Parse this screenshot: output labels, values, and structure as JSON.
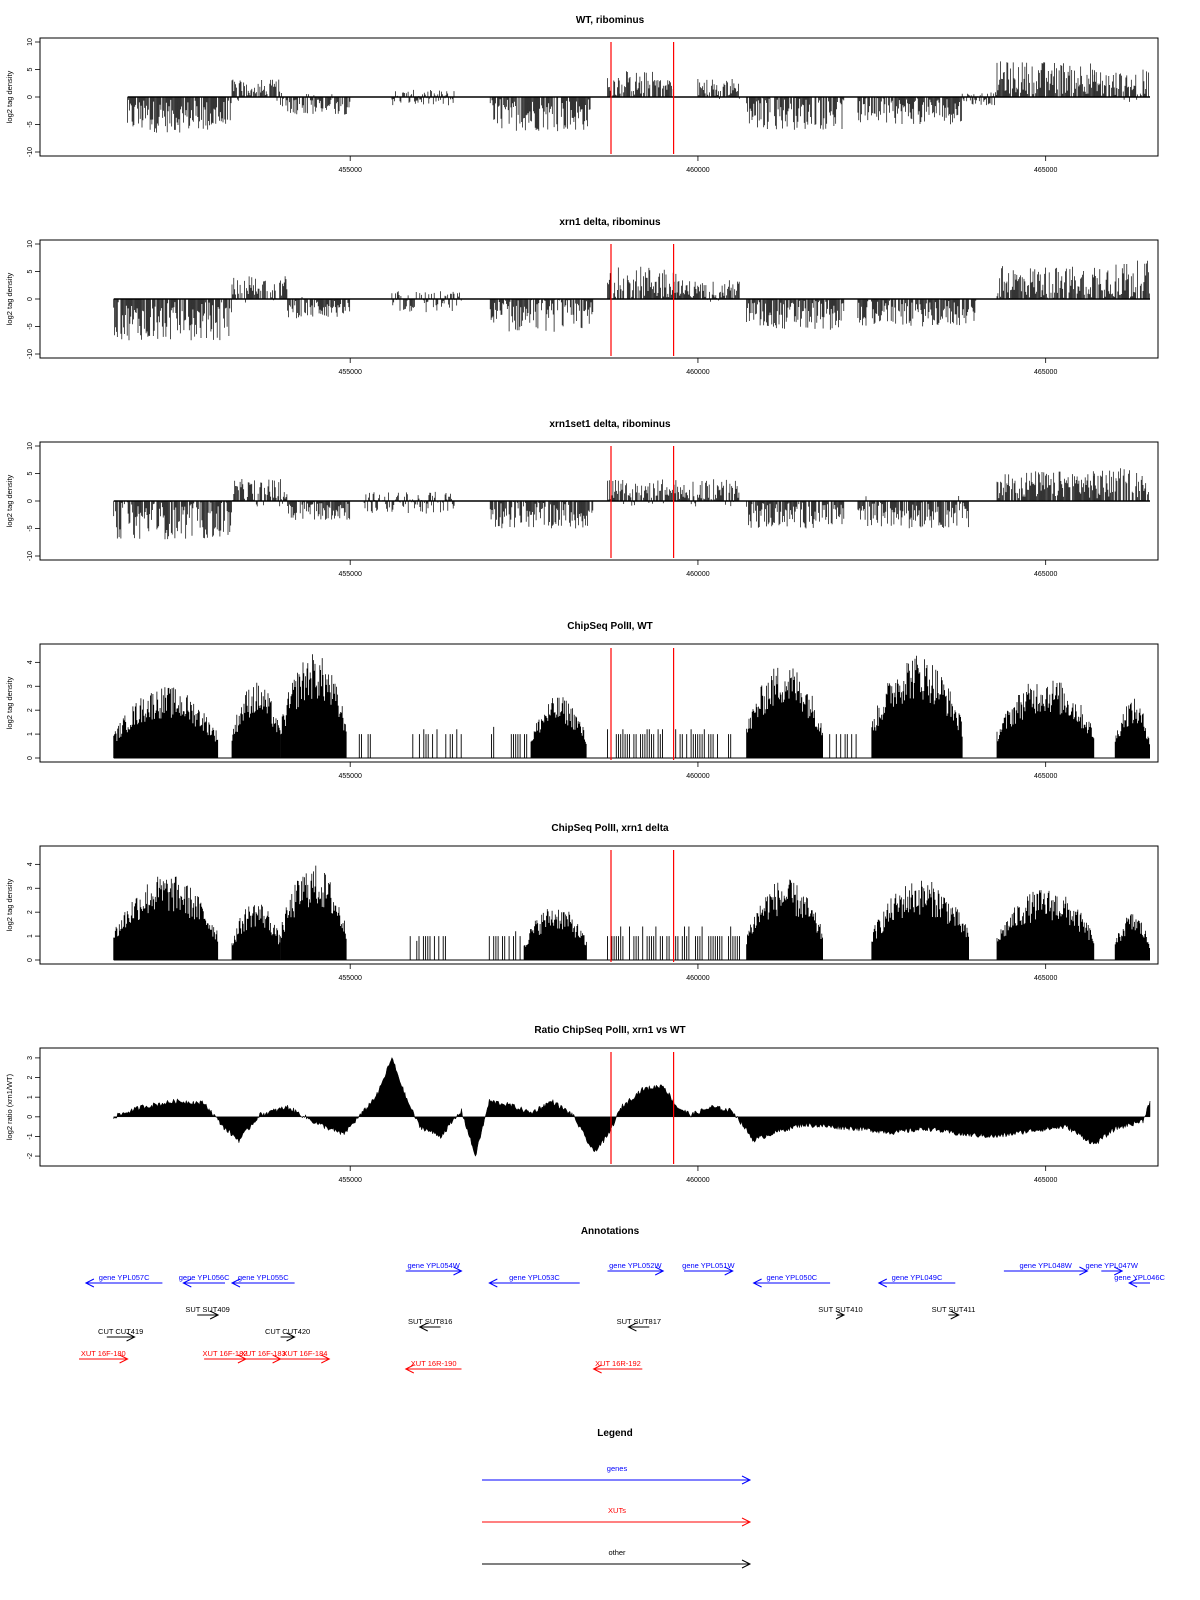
{
  "chart_data": [
    {
      "type": "bar",
      "title": "WT, ribominus",
      "ylabel": "log2 tag density",
      "ylim": [
        -10,
        10
      ],
      "yticks": [
        -10,
        -5,
        0,
        5,
        10
      ],
      "xlim": [
        451000,
        466500
      ],
      "xticks": [
        455000,
        460000,
        465000
      ],
      "markers": [
        458750,
        459650
      ],
      "segments": [
        {
          "start": 451800,
          "end": 453300,
          "mean": -3.5,
          "amp": 3.0
        },
        {
          "start": 453300,
          "end": 454000,
          "mean": 1.2,
          "amp": 2.0
        },
        {
          "start": 454000,
          "end": 455000,
          "mean": -1.2,
          "amp": 2.0
        },
        {
          "start": 455600,
          "end": 456500,
          "mean": -0.2,
          "amp": 1.5
        },
        {
          "start": 457000,
          "end": 458450,
          "mean": -3.2,
          "amp": 3.0
        },
        {
          "start": 458700,
          "end": 459650,
          "mean": 2.2,
          "amp": 2.5
        },
        {
          "start": 460000,
          "end": 460600,
          "mean": 1.5,
          "amp": 2.0
        },
        {
          "start": 460700,
          "end": 462100,
          "mean": -3.0,
          "amp": 3.0
        },
        {
          "start": 462300,
          "end": 463800,
          "mean": -2.5,
          "amp": 2.5
        },
        {
          "start": 463800,
          "end": 464300,
          "mean": -0.3,
          "amp": 1.2
        },
        {
          "start": 464300,
          "end": 465700,
          "mean": 3.5,
          "amp": 3.0
        },
        {
          "start": 465700,
          "end": 466500,
          "mean": 2.0,
          "amp": 3.0
        }
      ]
    },
    {
      "type": "bar",
      "title": "xrn1 delta, ribominus",
      "ylabel": "log2 tag density",
      "ylim": [
        -10,
        10
      ],
      "yticks": [
        -10,
        -5,
        0,
        5,
        10
      ],
      "xlim": [
        451000,
        466500
      ],
      "xticks": [
        455000,
        460000,
        465000
      ],
      "markers": [
        458750,
        459650
      ],
      "segments": [
        {
          "start": 451600,
          "end": 453300,
          "mean": -4.0,
          "amp": 3.5
        },
        {
          "start": 453300,
          "end": 454100,
          "mean": 1.8,
          "amp": 2.5
        },
        {
          "start": 454100,
          "end": 455000,
          "mean": -1.5,
          "amp": 2.0
        },
        {
          "start": 455600,
          "end": 456600,
          "mean": -0.5,
          "amp": 2.0
        },
        {
          "start": 457000,
          "end": 458500,
          "mean": -3.0,
          "amp": 3.0
        },
        {
          "start": 458700,
          "end": 459700,
          "mean": 3.0,
          "amp": 3.0
        },
        {
          "start": 459700,
          "end": 460600,
          "mean": 1.5,
          "amp": 2.0
        },
        {
          "start": 460700,
          "end": 462100,
          "mean": -2.8,
          "amp": 2.8
        },
        {
          "start": 462300,
          "end": 464000,
          "mean": -2.5,
          "amp": 2.5
        },
        {
          "start": 464300,
          "end": 465700,
          "mean": 3.0,
          "amp": 3.0
        },
        {
          "start": 465700,
          "end": 466500,
          "mean": 3.5,
          "amp": 3.5
        }
      ]
    },
    {
      "type": "bar",
      "title": "xrn1set1 delta, ribominus",
      "ylabel": "log2 tag density",
      "ylim": [
        -10,
        10
      ],
      "yticks": [
        -10,
        -5,
        0,
        5,
        10
      ],
      "xlim": [
        451000,
        466500
      ],
      "xticks": [
        455000,
        460000,
        465000
      ],
      "markers": [
        458750,
        459650
      ],
      "segments": [
        {
          "start": 451600,
          "end": 453300,
          "mean": -3.5,
          "amp": 3.5
        },
        {
          "start": 453300,
          "end": 454100,
          "mean": 1.5,
          "amp": 2.5
        },
        {
          "start": 454100,
          "end": 455000,
          "mean": -1.5,
          "amp": 2.0
        },
        {
          "start": 455200,
          "end": 456500,
          "mean": -0.3,
          "amp": 2.0
        },
        {
          "start": 457000,
          "end": 458500,
          "mean": -2.5,
          "amp": 2.5
        },
        {
          "start": 458700,
          "end": 460600,
          "mean": 1.5,
          "amp": 2.5
        },
        {
          "start": 460700,
          "end": 462100,
          "mean": -2.5,
          "amp": 2.5
        },
        {
          "start": 462300,
          "end": 463900,
          "mean": -2.0,
          "amp": 3.0
        },
        {
          "start": 464300,
          "end": 465700,
          "mean": 3.0,
          "amp": 2.5
        },
        {
          "start": 465700,
          "end": 466500,
          "mean": 3.0,
          "amp": 3.0
        }
      ]
    },
    {
      "type": "bar",
      "title": "ChipSeq PolII, WT",
      "ylabel": "log2 tag density",
      "ylim": [
        0,
        4.6
      ],
      "yticks": [
        0,
        1,
        2,
        3,
        4
      ],
      "xlim": [
        451000,
        466500
      ],
      "xticks": [
        455000,
        460000,
        465000
      ],
      "markers": [
        458750,
        459650
      ],
      "segments": [
        {
          "start": 451600,
          "end": 453100,
          "peak": 3.0,
          "sparse": false
        },
        {
          "start": 453300,
          "end": 454000,
          "peak": 3.2,
          "sparse": false
        },
        {
          "start": 454000,
          "end": 454950,
          "peak": 4.4,
          "sparse": false
        },
        {
          "start": 455100,
          "end": 455300,
          "peak": 1.0,
          "sparse": true
        },
        {
          "start": 455900,
          "end": 456600,
          "peak": 1.2,
          "sparse": true
        },
        {
          "start": 457000,
          "end": 457600,
          "peak": 1.3,
          "sparse": true
        },
        {
          "start": 457600,
          "end": 458400,
          "peak": 2.6,
          "sparse": false
        },
        {
          "start": 458700,
          "end": 460500,
          "peak": 1.2,
          "sparse": true
        },
        {
          "start": 460700,
          "end": 461800,
          "peak": 4.0,
          "sparse": false
        },
        {
          "start": 461800,
          "end": 462300,
          "peak": 1.0,
          "sparse": true
        },
        {
          "start": 462500,
          "end": 463800,
          "peak": 4.4,
          "sparse": false
        },
        {
          "start": 464300,
          "end": 465700,
          "peak": 3.4,
          "sparse": false
        },
        {
          "start": 466000,
          "end": 466500,
          "peak": 2.5,
          "sparse": false
        }
      ]
    },
    {
      "type": "bar",
      "title": "ChipSeq PolII, xrn1 delta",
      "ylabel": "log2 tag density",
      "ylim": [
        0,
        4.6
      ],
      "yticks": [
        0,
        1,
        2,
        3,
        4
      ],
      "xlim": [
        451000,
        466500
      ],
      "xticks": [
        455000,
        460000,
        465000
      ],
      "markers": [
        458750,
        459650
      ],
      "segments": [
        {
          "start": 451600,
          "end": 453100,
          "peak": 3.6,
          "sparse": false
        },
        {
          "start": 453300,
          "end": 454000,
          "peak": 2.5,
          "sparse": false
        },
        {
          "start": 454000,
          "end": 454950,
          "peak": 4.0,
          "sparse": false
        },
        {
          "start": 455800,
          "end": 456400,
          "peak": 0.8,
          "sparse": true
        },
        {
          "start": 457000,
          "end": 457500,
          "peak": 1.2,
          "sparse": true
        },
        {
          "start": 457500,
          "end": 458400,
          "peak": 2.3,
          "sparse": false
        },
        {
          "start": 458700,
          "end": 460600,
          "peak": 1.4,
          "sparse": true
        },
        {
          "start": 460700,
          "end": 461800,
          "peak": 3.4,
          "sparse": false
        },
        {
          "start": 462500,
          "end": 463900,
          "peak": 3.4,
          "sparse": false
        },
        {
          "start": 464300,
          "end": 465700,
          "peak": 3.0,
          "sparse": false
        },
        {
          "start": 466000,
          "end": 466500,
          "peak": 2.0,
          "sparse": false
        }
      ]
    },
    {
      "type": "area",
      "title": "Ratio ChipSeq PolII, xrn1 vs WT",
      "ylabel": "log2 ratio (xrn1/WT)",
      "ylim": [
        -2.3,
        3.3
      ],
      "yticks": [
        -2,
        -1,
        0,
        1,
        2,
        3
      ],
      "xlim": [
        451000,
        466500
      ],
      "xticks": [
        455000,
        460000,
        465000
      ],
      "markers": [
        458750,
        459650
      ],
      "x": [
        451600,
        452000,
        452500,
        452900,
        453200,
        453400,
        453700,
        454100,
        454500,
        454900,
        455200,
        455400,
        455600,
        455800,
        456000,
        456300,
        456600,
        456800,
        457000,
        457300,
        457600,
        457900,
        458200,
        458500,
        458700,
        458900,
        459200,
        459500,
        459700,
        459900,
        460200,
        460500,
        460800,
        461100,
        461500,
        461900,
        462300,
        462800,
        463300,
        463800,
        464300,
        464800,
        465300,
        465700,
        466000,
        466400,
        466500
      ],
      "y": [
        0.0,
        0.5,
        0.8,
        0.7,
        -0.6,
        -1.2,
        0.1,
        0.5,
        -0.3,
        -0.9,
        0.3,
        1.2,
        3.0,
        1.0,
        -0.5,
        -1.0,
        0.3,
        -2.0,
        0.8,
        0.6,
        0.2,
        0.8,
        0.1,
        -1.8,
        -1.0,
        0.5,
        1.4,
        1.6,
        0.5,
        0.1,
        0.5,
        0.3,
        -1.2,
        -0.8,
        -0.4,
        -0.5,
        -0.6,
        -0.8,
        -0.6,
        -0.9,
        -1.0,
        -0.7,
        -0.5,
        -1.4,
        -0.6,
        -0.2,
        0.8
      ]
    }
  ],
  "annotations": {
    "title": "Annotations",
    "xlim": [
      451000,
      466500
    ],
    "features": [
      {
        "label": "gene YPL057C",
        "start": 451200,
        "end": 452300,
        "strand": "-",
        "color": "#0000ff",
        "row": 0
      },
      {
        "label": "gene YPL056C",
        "start": 452600,
        "end": 453200,
        "strand": "-",
        "color": "#0000ff",
        "row": 0
      },
      {
        "label": "gene YPL055C",
        "start": 453300,
        "end": 454200,
        "strand": "-",
        "color": "#0000ff",
        "row": 0
      },
      {
        "label": "gene YPL054W",
        "start": 455800,
        "end": 456600,
        "strand": "+",
        "color": "#0000ff",
        "row": -0.6
      },
      {
        "label": "gene YPL053C",
        "start": 457000,
        "end": 458300,
        "strand": "-",
        "color": "#0000ff",
        "row": 0
      },
      {
        "label": "gene YPL052W",
        "start": 458700,
        "end": 459500,
        "strand": "+",
        "color": "#0000ff",
        "row": -0.6
      },
      {
        "label": "gene YPL051W",
        "start": 459800,
        "end": 460500,
        "strand": "+",
        "color": "#0000ff",
        "row": -0.6
      },
      {
        "label": "gene YPL050C",
        "start": 460800,
        "end": 461900,
        "strand": "-",
        "color": "#0000ff",
        "row": 0
      },
      {
        "label": "gene YPL049C",
        "start": 462600,
        "end": 463700,
        "strand": "-",
        "color": "#0000ff",
        "row": 0
      },
      {
        "label": "gene YPL048W",
        "start": 464400,
        "end": 465600,
        "strand": "+",
        "color": "#0000ff",
        "row": -0.6
      },
      {
        "label": "gene YPL047W",
        "start": 465800,
        "end": 466100,
        "strand": "+",
        "color": "#0000ff",
        "row": -0.6
      },
      {
        "label": "gene YPL046C",
        "start": 466200,
        "end": 466500,
        "strand": "-",
        "color": "#0000ff",
        "row": 0
      },
      {
        "label": "SUT SUT409",
        "start": 452800,
        "end": 453100,
        "strand": "+",
        "color": "#000000",
        "row": 1.6
      },
      {
        "label": "SUT SUT816",
        "start": 456000,
        "end": 456300,
        "strand": "-",
        "color": "#000000",
        "row": 2.2
      },
      {
        "label": "SUT SUT817",
        "start": 459000,
        "end": 459300,
        "strand": "-",
        "color": "#000000",
        "row": 2.2
      },
      {
        "label": "SUT SUT410",
        "start": 462000,
        "end": 462100,
        "strand": "+",
        "color": "#000000",
        "row": 1.6
      },
      {
        "label": "SUT SUT411",
        "start": 463600,
        "end": 463750,
        "strand": "+",
        "color": "#000000",
        "row": 1.6
      },
      {
        "label": "CUT CUT419",
        "start": 451500,
        "end": 451900,
        "strand": "+",
        "color": "#000000",
        "row": 2.7
      },
      {
        "label": "CUT CUT420",
        "start": 454000,
        "end": 454200,
        "strand": "+",
        "color": "#000000",
        "row": 2.7
      },
      {
        "label": "XUT 16F-180",
        "start": 451100,
        "end": 451800,
        "strand": "+",
        "color": "#ff0000",
        "row": 3.8
      },
      {
        "label": "XUT 16F-182",
        "start": 452900,
        "end": 453500,
        "strand": "+",
        "color": "#ff0000",
        "row": 3.8
      },
      {
        "label": "XUT 16F-183",
        "start": 453500,
        "end": 454000,
        "strand": "+",
        "color": "#ff0000",
        "row": 3.8
      },
      {
        "label": "XUT 16F-184",
        "start": 454000,
        "end": 454700,
        "strand": "+",
        "color": "#ff0000",
        "row": 3.8
      },
      {
        "label": "XUT 16R-190",
        "start": 455800,
        "end": 456600,
        "strand": "-",
        "color": "#ff0000",
        "row": 4.3
      },
      {
        "label": "XUT 16R-192",
        "start": 458500,
        "end": 459200,
        "strand": "-",
        "color": "#ff0000",
        "row": 4.3
      }
    ]
  },
  "legend": {
    "title": "Legend",
    "items": [
      {
        "label": "genes",
        "color": "#0000ff"
      },
      {
        "label": "XUTs",
        "color": "#ff0000"
      },
      {
        "label": "other",
        "color": "#000000"
      }
    ]
  }
}
